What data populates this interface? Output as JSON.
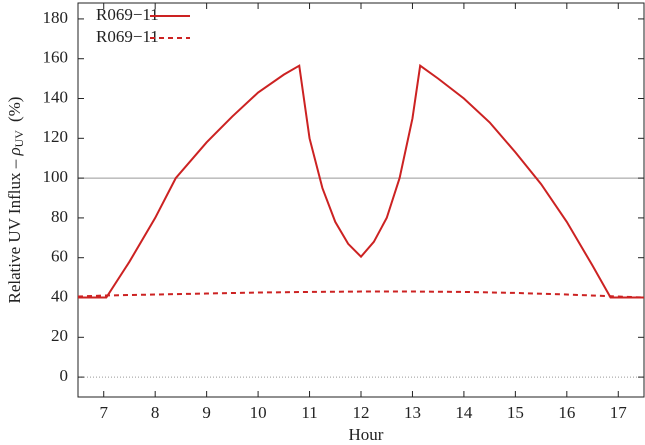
{
  "chart_data": {
    "type": "line",
    "xlabel": "Hour",
    "ylabel": {
      "text": "Relative  UV  Influx  –  ",
      "symbol": "ρ",
      "subscript": "UV",
      "unit": "(%)"
    },
    "xlim": [
      6.5,
      17.5
    ],
    "xticks": [
      7,
      8,
      9,
      10,
      11,
      12,
      13,
      14,
      15,
      16,
      17
    ],
    "ylim": [
      -10,
      188
    ],
    "yticks": [
      0,
      20,
      40,
      60,
      80,
      100,
      120,
      140,
      160,
      180
    ],
    "hlines": [
      {
        "value": 100,
        "style": "solid",
        "color": "#999999"
      },
      {
        "value": 0,
        "style": "dotted",
        "color": "#999999"
      }
    ],
    "legend": "top-left",
    "series": [
      {
        "name": "R069−11",
        "color": "#cc2222",
        "style": "solid",
        "x": [
          6.5,
          7.05,
          7.5,
          8,
          8.4,
          9,
          9.5,
          10,
          10.5,
          10.8,
          11,
          11.25,
          11.5,
          11.75,
          12,
          12.25,
          12.5,
          12.75,
          13,
          13.15,
          13.5,
          14,
          14.5,
          15,
          15.5,
          16,
          16.5,
          16.85,
          17.5
        ],
        "values": [
          40,
          40,
          58,
          80,
          100,
          118,
          131,
          143,
          152,
          156.5,
          120,
          95,
          78,
          67,
          60.5,
          68,
          80,
          100,
          130,
          156.5,
          150,
          140,
          128,
          113,
          97,
          78,
          56,
          40,
          40
        ]
      },
      {
        "name": "R069−11",
        "color": "#cc2222",
        "style": "dashed",
        "x": [
          6.5,
          7,
          8,
          9,
          10,
          11,
          12,
          13,
          14,
          15,
          16,
          17,
          17.5
        ],
        "values": [
          40.5,
          41,
          41.5,
          42,
          42.5,
          42.8,
          43,
          43,
          42.8,
          42.3,
          41.5,
          40.5,
          40
        ]
      }
    ]
  }
}
